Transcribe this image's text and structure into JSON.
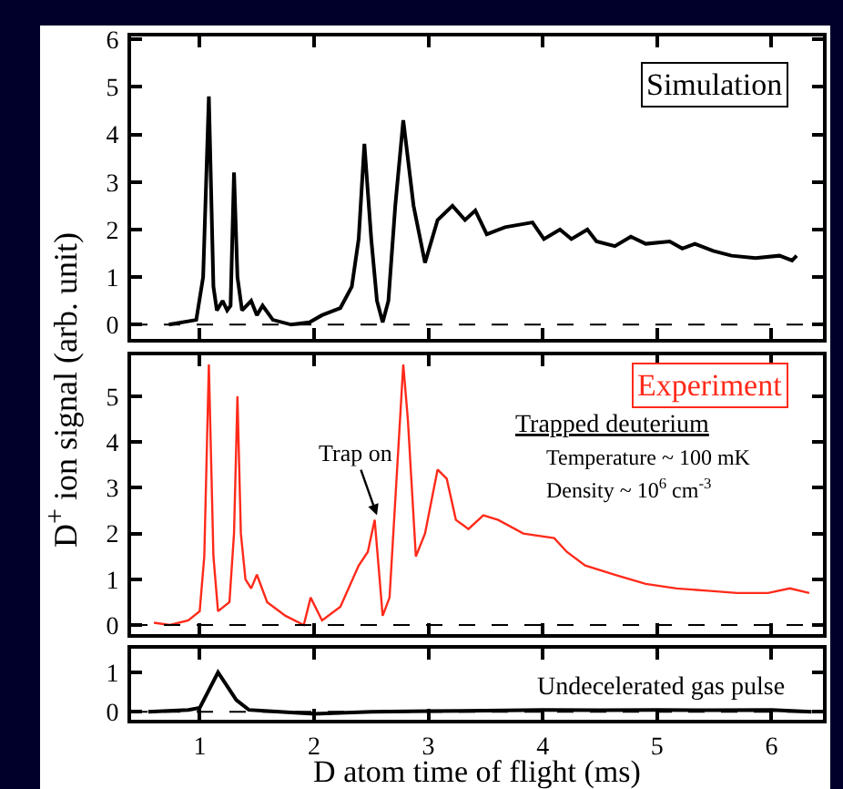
{
  "chart_data": [
    {
      "type": "line",
      "title": "Simulation",
      "tick_labels": "y",
      "grid": false,
      "xlim": [
        0.4,
        6.45
      ],
      "xticks": [
        1,
        2,
        3,
        4,
        5,
        6
      ],
      "ylim": [
        -0.3,
        6.06
      ],
      "yticks": [
        0,
        1,
        2,
        3,
        4,
        5,
        6
      ],
      "ref_lines": [
        {
          "axis": "y",
          "value": 0,
          "color": "#000000",
          "line_style": "dashed"
        }
      ],
      "series": [
        {
          "color": "#000000",
          "x": [
            0.73,
            0.97,
            1.03,
            1.08,
            1.12,
            1.15,
            1.2,
            1.24,
            1.27,
            1.3,
            1.33,
            1.37,
            1.45,
            1.5,
            1.55,
            1.64,
            1.8,
            1.96,
            2.07,
            2.23,
            2.33,
            2.39,
            2.44,
            2.5,
            2.55,
            2.6,
            2.65,
            2.71,
            2.78,
            2.87,
            2.97,
            3.08,
            3.21,
            3.32,
            3.41,
            3.51,
            3.67,
            3.91,
            4.01,
            4.15,
            4.25,
            4.39,
            4.47,
            4.63,
            4.77,
            4.9,
            5.11,
            5.22,
            5.33,
            5.49,
            5.65,
            5.86,
            6.07,
            6.18,
            6.22
          ],
          "values": [
            0,
            0.1,
            1.0,
            4.8,
            0.8,
            0.3,
            0.5,
            0.3,
            0.4,
            3.2,
            1.0,
            0.3,
            0.5,
            0.2,
            0.4,
            0.1,
            0,
            0.05,
            0.2,
            0.35,
            0.8,
            1.8,
            3.8,
            1.8,
            0.5,
            0.05,
            0.5,
            2.5,
            4.3,
            2.5,
            1.3,
            2.2,
            2.5,
            2.2,
            2.4,
            1.9,
            2.05,
            2.15,
            1.8,
            2.0,
            1.8,
            2.0,
            1.75,
            1.65,
            1.85,
            1.7,
            1.75,
            1.6,
            1.7,
            1.55,
            1.45,
            1.4,
            1.45,
            1.35,
            1.45
          ]
        }
      ]
    },
    {
      "type": "line",
      "title": "Experiment",
      "ylabel": "D$^{+}$ ion signal (arb. unit)",
      "tick_labels": "y",
      "grid": false,
      "xlim": [
        0.4,
        6.45
      ],
      "xticks": [
        1,
        2,
        3,
        4,
        5,
        6
      ],
      "ylim": [
        -0.2,
        5.9
      ],
      "yticks": [
        0,
        1,
        2,
        3,
        4,
        5
      ],
      "ref_lines": [
        {
          "axis": "y",
          "value": 0,
          "color": "#000000",
          "line_style": "dashed"
        }
      ],
      "annotations": [
        "Trapped deuterium",
        "Temperature ~ 100 mK",
        "Density ~ 10$^{6}$ cm$^{-3}$",
        {
          "text": "Trap on",
          "x": 2.55,
          "y": 2.4
        }
      ],
      "series": [
        {
          "color": "#ff2a1a",
          "x": [
            0.6,
            0.74,
            0.9,
            1.0,
            1.04,
            1.08,
            1.12,
            1.16,
            1.26,
            1.3,
            1.33,
            1.36,
            1.4,
            1.45,
            1.5,
            1.59,
            1.75,
            1.91,
            1.97,
            2.07,
            2.23,
            2.39,
            2.47,
            2.53,
            2.6,
            2.66,
            2.74,
            2.78,
            2.82,
            2.89,
            2.97,
            3.08,
            3.16,
            3.24,
            3.35,
            3.48,
            3.61,
            3.83,
            4.1,
            4.21,
            4.37,
            4.63,
            4.9,
            5.17,
            5.44,
            5.7,
            5.97,
            6.16,
            6.33
          ],
          "values": [
            0.05,
            0.0,
            0.1,
            0.3,
            1.5,
            5.7,
            1.5,
            0.3,
            0.5,
            2.0,
            5.0,
            2.0,
            1.0,
            0.8,
            1.1,
            0.5,
            0.2,
            0.0,
            0.6,
            0.1,
            0.4,
            1.3,
            1.6,
            2.3,
            0.2,
            0.6,
            4.0,
            5.7,
            4.5,
            1.5,
            2.0,
            3.4,
            3.2,
            2.3,
            2.1,
            2.4,
            2.3,
            2.0,
            1.9,
            1.6,
            1.3,
            1.1,
            0.9,
            0.8,
            0.75,
            0.7,
            0.7,
            0.8,
            0.7
          ]
        }
      ]
    },
    {
      "type": "line",
      "title": "Undecelerated gas pulse",
      "xlabel": "D atom time of flight (ms)",
      "grid": false,
      "xlim": [
        0.4,
        6.45
      ],
      "xticks": [
        1,
        2,
        3,
        4,
        5,
        6
      ],
      "ylim": [
        -0.2,
        1.6
      ],
      "yticks": [
        0,
        1
      ],
      "ref_lines": [
        {
          "axis": "y",
          "value": 0,
          "color": "#000000",
          "line_style": "dashed"
        }
      ],
      "series": [
        {
          "color": "#000000",
          "x": [
            0.55,
            0.9,
            1.0,
            1.16,
            1.32,
            1.43,
            1.6,
            2.0,
            2.5,
            3.0,
            3.5,
            4.0,
            4.5,
            5.0,
            5.5,
            6.0,
            6.35
          ],
          "values": [
            0.0,
            0.05,
            0.1,
            1.0,
            0.3,
            0.05,
            0.02,
            -0.05,
            0.0,
            0.02,
            0.03,
            0.05,
            0.04,
            0.05,
            0.04,
            0.05,
            0.0
          ]
        }
      ]
    }
  ]
}
